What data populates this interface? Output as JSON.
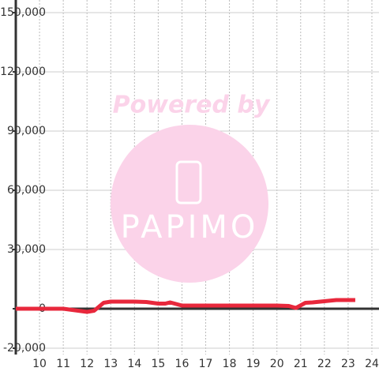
{
  "chart_data": {
    "type": "line",
    "watermark": "Powered by",
    "logo": "PAPIMO",
    "x": [
      9,
      10,
      11,
      11.5,
      12,
      12.3,
      12.7,
      13,
      14,
      14.5,
      15,
      15.3,
      15.5,
      16,
      17,
      18,
      19,
      20,
      20.5,
      20.8,
      21.2,
      21.5,
      22,
      22.5,
      23,
      23.3
    ],
    "series": [
      {
        "color": "#e8283c",
        "values": [
          0,
          0,
          0,
          -800,
          -1600,
          -1000,
          3000,
          3600,
          3600,
          3400,
          2600,
          2600,
          3200,
          1600,
          1600,
          1600,
          1600,
          1600,
          1400,
          400,
          3000,
          3200,
          3800,
          4400,
          4400,
          4400
        ]
      }
    ],
    "xlim": [
      9,
      24.3
    ],
    "xticks": [
      10,
      11,
      12,
      13,
      14,
      15,
      16,
      17,
      18,
      19,
      20,
      21,
      22,
      23,
      24
    ],
    "ylim": [
      -20000,
      150000
    ],
    "yticks": [
      {
        "value": -20000,
        "label": "-20,000"
      },
      {
        "value": 0,
        "label": "0"
      },
      {
        "value": 30000,
        "label": "30,000"
      },
      {
        "value": 60000,
        "label": "60,000"
      },
      {
        "value": 90000,
        "label": "90,000"
      },
      {
        "value": 120000,
        "label": "120,000"
      },
      {
        "value": 150000,
        "label": "150,000"
      }
    ],
    "grid": true
  }
}
